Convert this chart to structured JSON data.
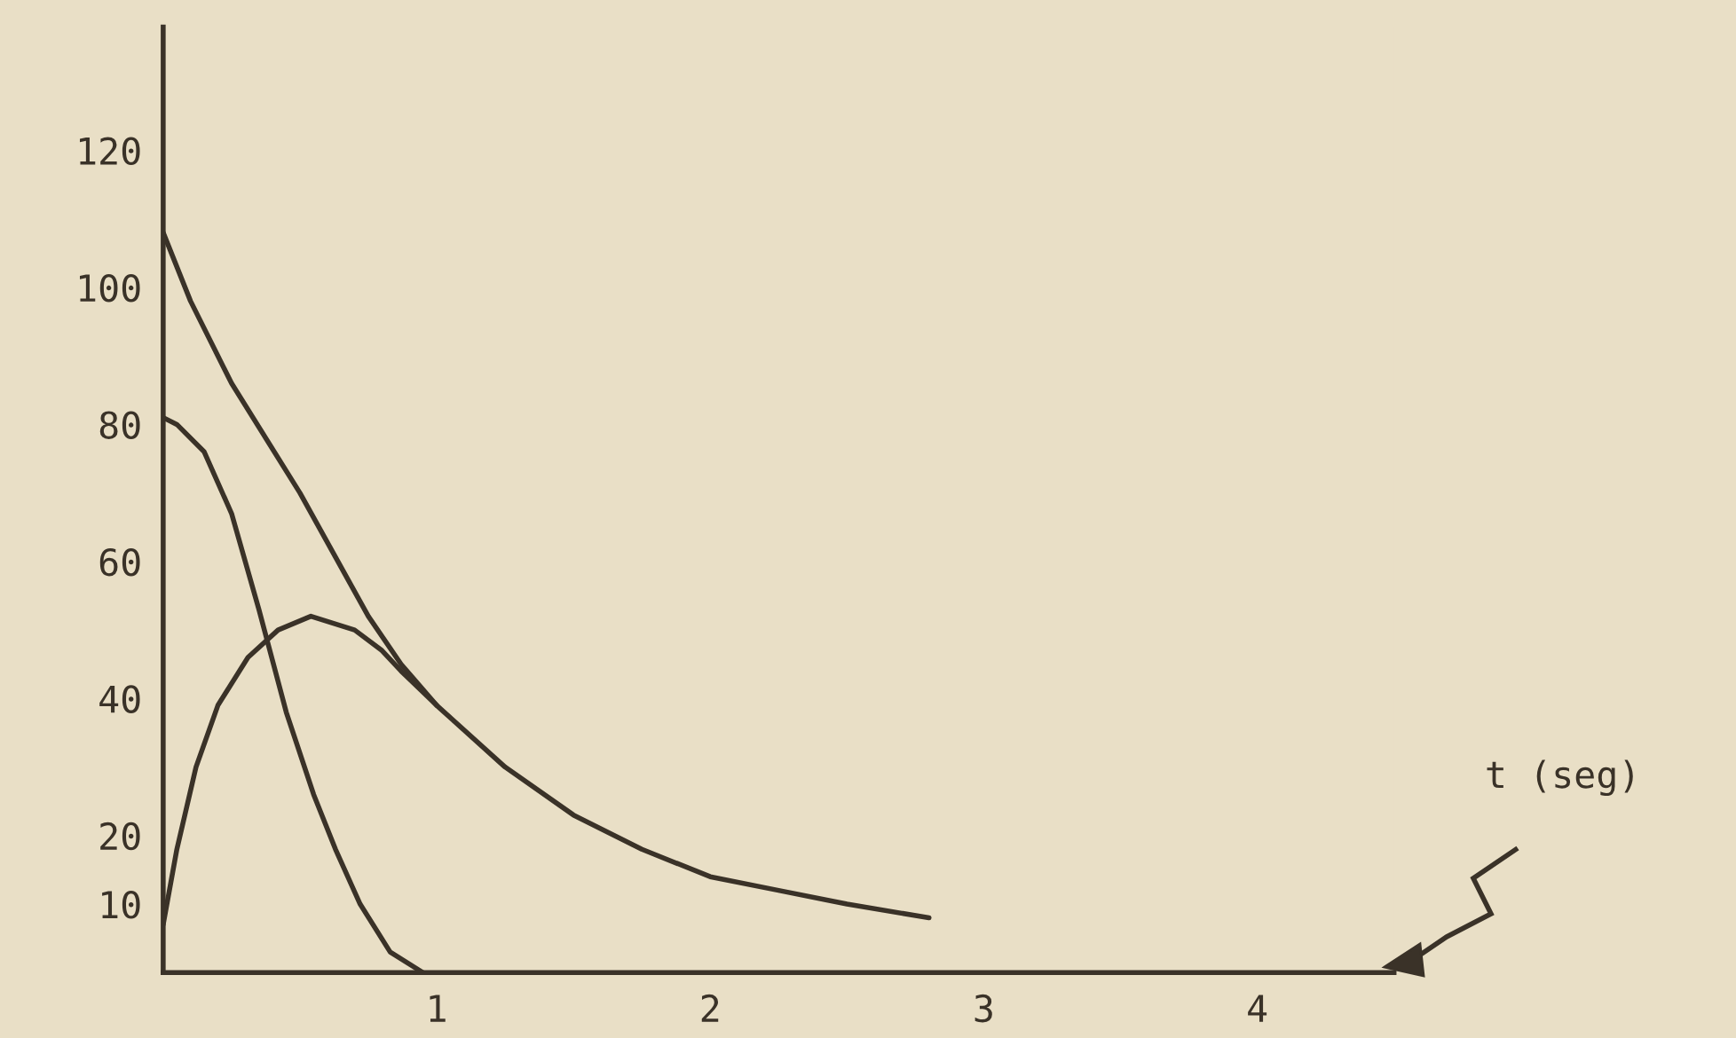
{
  "chart_data": {
    "type": "line",
    "xlabel": "t (seg)",
    "xlim": [
      0,
      4.5
    ],
    "xticks": [
      1,
      2,
      3,
      4
    ],
    "ylim": [
      0,
      138
    ],
    "yticks": [
      10,
      20,
      40,
      60,
      80,
      100,
      120
    ],
    "grid": false,
    "legend": false,
    "marker": "none",
    "line_style": "solid",
    "series": [
      {
        "color": "#3a3228",
        "x": [
          0,
          0.1,
          0.25,
          0.5,
          0.75,
          0.87,
          1,
          1.25,
          1.5,
          1.75,
          2,
          2.25,
          2.5,
          2.8
        ],
        "values": [
          108,
          98,
          86,
          70,
          52,
          45,
          39,
          30,
          23,
          18,
          14,
          12,
          10,
          8
        ]
      },
      {
        "color": "#3a3228",
        "x": [
          0,
          0.05,
          0.15,
          0.25,
          0.35,
          0.45,
          0.55,
          0.63,
          0.72,
          0.83,
          0.95
        ],
        "values": [
          81,
          80,
          76,
          67,
          53,
          38,
          26,
          18,
          10,
          3,
          0
        ]
      },
      {
        "color": "#3a3228",
        "x": [
          0,
          0.05,
          0.12,
          0.2,
          0.31,
          0.42,
          0.54,
          0.62,
          0.7,
          0.8,
          0.87,
          1
        ],
        "values": [
          7,
          18,
          30,
          39,
          46,
          50,
          52,
          51,
          50,
          47,
          44,
          39
        ]
      }
    ]
  }
}
